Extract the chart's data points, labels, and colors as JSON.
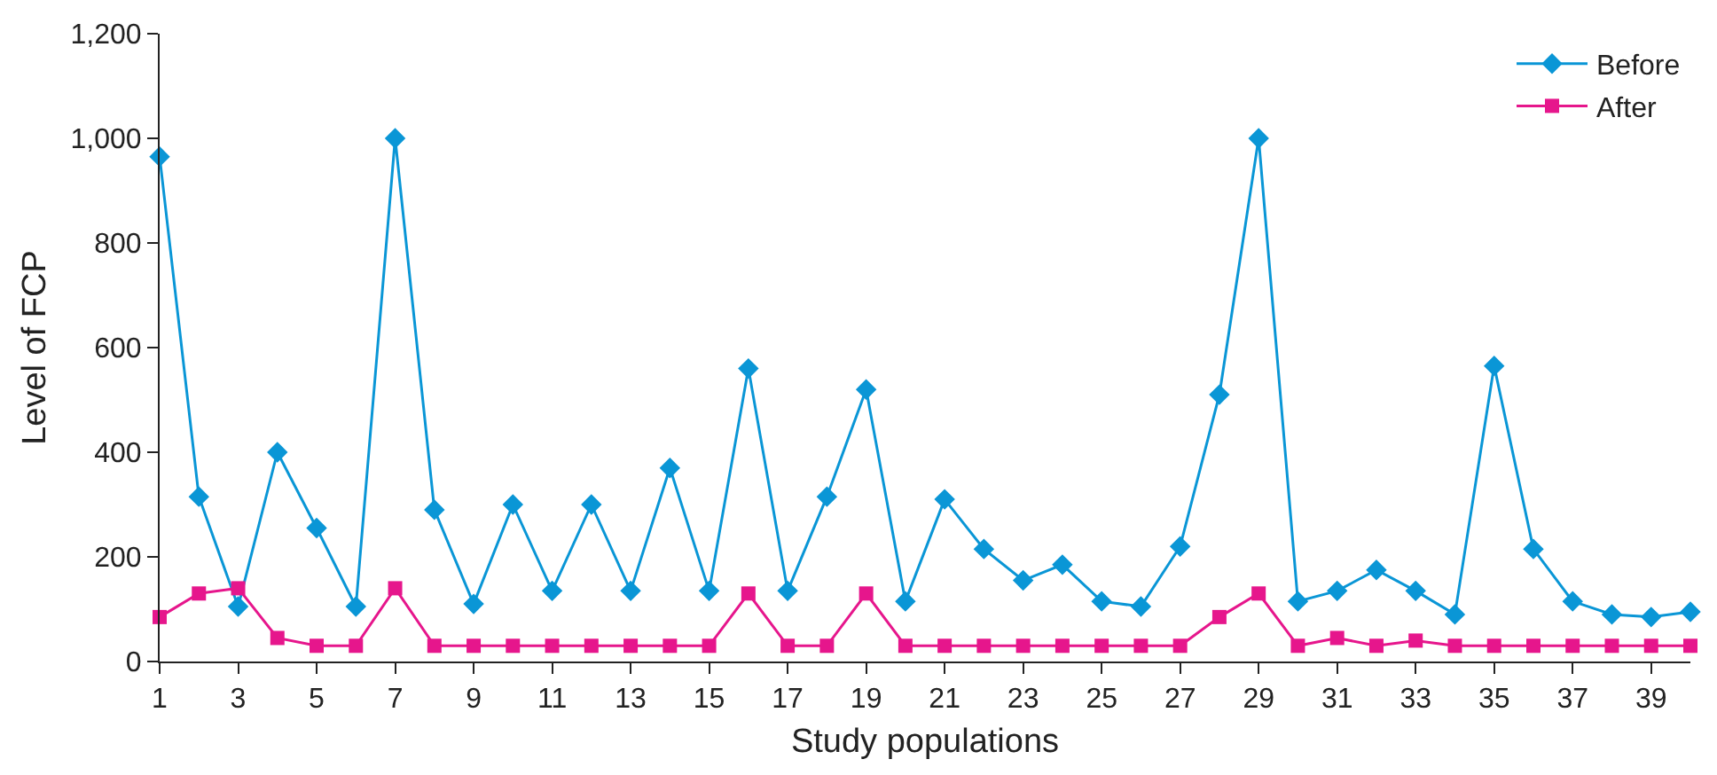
{
  "chart_data": {
    "type": "line",
    "xlabel": "Study populations",
    "ylabel": "Level of FCP",
    "x": [
      1,
      2,
      3,
      4,
      5,
      6,
      7,
      8,
      9,
      10,
      11,
      12,
      13,
      14,
      15,
      16,
      17,
      18,
      19,
      20,
      21,
      22,
      23,
      24,
      25,
      26,
      27,
      28,
      29,
      30,
      31,
      32,
      33,
      34,
      35,
      36,
      37,
      38,
      39,
      40
    ],
    "series": [
      {
        "name": "Before",
        "color": "#0a96d6",
        "marker": "diamond",
        "values": [
          965,
          315,
          105,
          400,
          255,
          105,
          1000,
          290,
          110,
          300,
          135,
          300,
          135,
          370,
          135,
          560,
          135,
          315,
          520,
          115,
          310,
          215,
          155,
          185,
          115,
          105,
          220,
          510,
          1000,
          115,
          135,
          175,
          135,
          90,
          565,
          215,
          115,
          90,
          85,
          95
        ]
      },
      {
        "name": "After",
        "color": "#e6168c",
        "marker": "square",
        "values": [
          85,
          130,
          140,
          45,
          30,
          30,
          140,
          30,
          30,
          30,
          30,
          30,
          30,
          30,
          30,
          130,
          30,
          30,
          130,
          30,
          30,
          30,
          30,
          30,
          30,
          30,
          30,
          85,
          130,
          30,
          45,
          30,
          40,
          30,
          30,
          30,
          30,
          30,
          30,
          30
        ]
      }
    ],
    "xlim": [
      1,
      40
    ],
    "xticks": [
      1,
      3,
      5,
      7,
      9,
      11,
      13,
      15,
      17,
      19,
      21,
      23,
      25,
      27,
      29,
      31,
      33,
      35,
      37,
      39
    ],
    "ylim": [
      0,
      1200
    ],
    "yticks": [
      {
        "value": 0,
        "label": "0"
      },
      {
        "value": 200,
        "label": "200"
      },
      {
        "value": 400,
        "label": "400"
      },
      {
        "value": 600,
        "label": "600"
      },
      {
        "value": 800,
        "label": "800"
      },
      {
        "value": 1000,
        "label": "1,000"
      },
      {
        "value": 1200,
        "label": "1,200"
      }
    ],
    "legend": "top right",
    "line_style": "solid"
  }
}
